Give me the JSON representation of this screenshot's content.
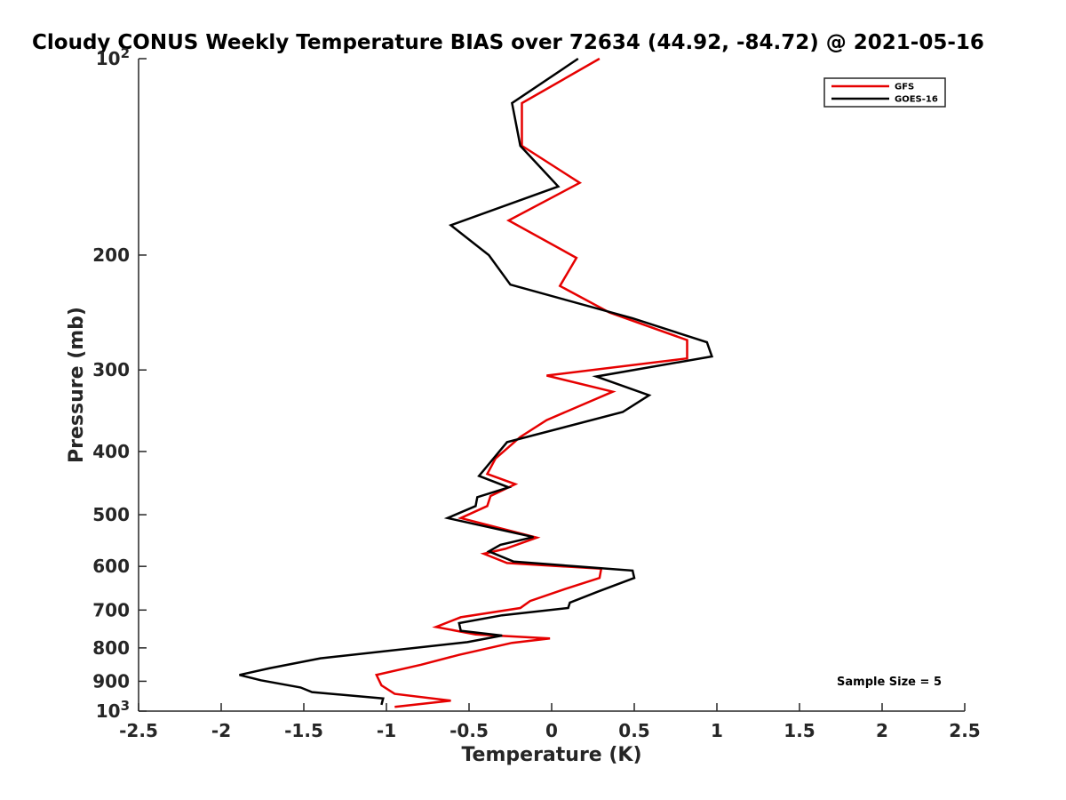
{
  "chart_data": {
    "type": "line",
    "title": "Cloudy CONUS Weekly Temperature BIAS over 72634 (44.92, -84.72) @ 2021-05-16",
    "xlabel": "Temperature (K)",
    "ylabel": "Pressure (mb)",
    "xlim": [
      -2.5,
      2.5
    ],
    "ylim": [
      1000,
      100
    ],
    "yscale": "log",
    "y_reversed": true,
    "grid": false,
    "legend_position": "top-right",
    "x_ticks": [
      {
        "value": -2.5,
        "label": "-2.5"
      },
      {
        "value": -2,
        "label": "-2"
      },
      {
        "value": -1.5,
        "label": "-1.5"
      },
      {
        "value": -1,
        "label": "-1"
      },
      {
        "value": -0.5,
        "label": "-0.5"
      },
      {
        "value": 0,
        "label": "0"
      },
      {
        "value": 0.5,
        "label": "0.5"
      },
      {
        "value": 1,
        "label": "1"
      },
      {
        "value": 1.5,
        "label": "1.5"
      },
      {
        "value": 2,
        "label": "2"
      },
      {
        "value": 2.5,
        "label": "2.5"
      }
    ],
    "y_ticks": [
      {
        "value": 100,
        "label": "10",
        "sup": "2"
      },
      {
        "value": 200,
        "label": "200",
        "sup": ""
      },
      {
        "value": 300,
        "label": "300",
        "sup": ""
      },
      {
        "value": 400,
        "label": "400",
        "sup": ""
      },
      {
        "value": 500,
        "label": "500",
        "sup": ""
      },
      {
        "value": 600,
        "label": "600",
        "sup": ""
      },
      {
        "value": 700,
        "label": "700",
        "sup": ""
      },
      {
        "value": 800,
        "label": "800",
        "sup": ""
      },
      {
        "value": 900,
        "label": "900",
        "sup": ""
      },
      {
        "value": 1000,
        "label": "10",
        "sup": "3"
      }
    ],
    "series": [
      {
        "name": "GFS",
        "color": "#e60000",
        "points": [
          [
            0.29,
            100
          ],
          [
            -0.18,
            117
          ],
          [
            -0.18,
            136
          ],
          [
            0.17,
            155
          ],
          [
            -0.26,
            177
          ],
          [
            0.15,
            202
          ],
          [
            0.05,
            223
          ],
          [
            0.35,
            245
          ],
          [
            0.82,
            270
          ],
          [
            0.82,
            288
          ],
          [
            -0.03,
            306
          ],
          [
            0.37,
            324
          ],
          [
            -0.03,
            358
          ],
          [
            -0.19,
            380
          ],
          [
            -0.34,
            410
          ],
          [
            -0.39,
            433
          ],
          [
            -0.22,
            449
          ],
          [
            -0.37,
            468
          ],
          [
            -0.39,
            485
          ],
          [
            -0.55,
            506
          ],
          [
            -0.09,
            542
          ],
          [
            -0.28,
            564
          ],
          [
            -0.41,
            574
          ],
          [
            -0.27,
            593
          ],
          [
            0.3,
            605
          ],
          [
            0.29,
            625
          ],
          [
            0.08,
            650
          ],
          [
            -0.13,
            678
          ],
          [
            -0.19,
            695
          ],
          [
            -0.55,
            718
          ],
          [
            -0.7,
            743
          ],
          [
            -0.46,
            763
          ],
          [
            -0.01,
            774
          ],
          [
            -0.24,
            786
          ],
          [
            -0.56,
            820
          ],
          [
            -0.79,
            849
          ],
          [
            -1.06,
            880
          ],
          [
            -1.03,
            913
          ],
          [
            -0.95,
            941
          ],
          [
            -0.61,
            964
          ],
          [
            -0.95,
            985
          ]
        ]
      },
      {
        "name": "GOES-16",
        "color": "#000000",
        "points": [
          [
            0.16,
            100
          ],
          [
            -0.24,
            117
          ],
          [
            -0.19,
            136
          ],
          [
            0.04,
            157
          ],
          [
            -0.61,
            180
          ],
          [
            -0.38,
            200
          ],
          [
            -0.25,
            222
          ],
          [
            0.49,
            250
          ],
          [
            0.94,
            272
          ],
          [
            0.97,
            286
          ],
          [
            0.27,
            307
          ],
          [
            0.59,
            328
          ],
          [
            0.43,
            348
          ],
          [
            -0.27,
            387
          ],
          [
            -0.44,
            436
          ],
          [
            -0.26,
            454
          ],
          [
            -0.45,
            470
          ],
          [
            -0.46,
            485
          ],
          [
            -0.63,
            506
          ],
          [
            -0.11,
            541
          ],
          [
            -0.31,
            556
          ],
          [
            -0.38,
            569
          ],
          [
            -0.23,
            590
          ],
          [
            0.49,
            609
          ],
          [
            0.5,
            625
          ],
          [
            0.28,
            656
          ],
          [
            0.11,
            682
          ],
          [
            0.1,
            695
          ],
          [
            -0.3,
            713
          ],
          [
            -0.56,
            733
          ],
          [
            -0.55,
            753
          ],
          [
            -0.3,
            766
          ],
          [
            -0.51,
            784
          ],
          [
            -1.4,
            830
          ],
          [
            -1.71,
            860
          ],
          [
            -1.89,
            880
          ],
          [
            -1.76,
            897
          ],
          [
            -1.52,
            920
          ],
          [
            -1.45,
            935
          ],
          [
            -1.02,
            956
          ],
          [
            -1.03,
            978
          ]
        ]
      }
    ],
    "annotations": [
      {
        "text": "Sample Size = 5",
        "position": "lower-right"
      }
    ]
  }
}
